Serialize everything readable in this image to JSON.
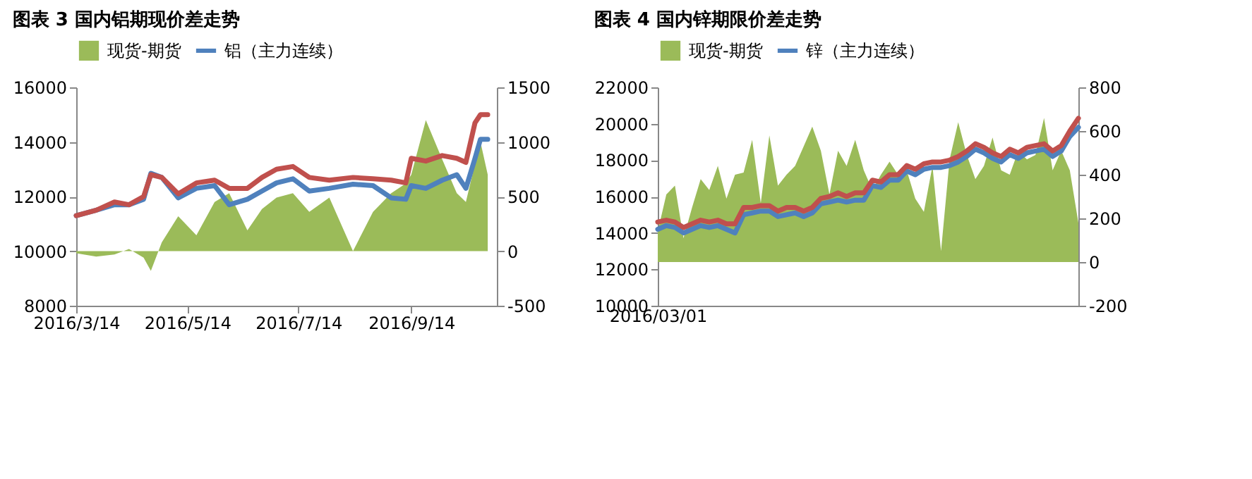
{
  "chart_data": [
    {
      "type": "line",
      "title": "图表 3 国内铝期现价差走势",
      "legend": "top",
      "x": [
        "2016-03-14",
        "2016-03-25",
        "2016-04-04",
        "2016-04-12",
        "2016-04-20",
        "2016-04-24",
        "2016-04-30",
        "2016-05-09",
        "2016-05-19",
        "2016-05-29",
        "2016-06-06",
        "2016-06-16",
        "2016-06-24",
        "2016-07-02",
        "2016-07-11",
        "2016-07-20",
        "2016-07-31",
        "2016-08-13",
        "2016-08-24",
        "2016-09-03",
        "2016-09-11",
        "2016-09-14",
        "2016-09-22",
        "2016-10-01",
        "2016-10-09",
        "2016-10-14",
        "2016-10-19",
        "2016-10-22",
        "2016-10-26"
      ],
      "xlim": [
        "2016-03-14",
        "2016-10-31"
      ],
      "xticks": [
        {
          "value": "2016-03-14",
          "label": "2016/3/14"
        },
        {
          "value": "2016-05-14",
          "label": "2016/5/14"
        },
        {
          "value": "2016-07-14",
          "label": "2016/7/14"
        },
        {
          "value": "2016-09-14",
          "label": "2016/9/14"
        }
      ],
      "ylim": [
        8000,
        16000
      ],
      "yticks": [
        8000,
        10000,
        12000,
        14000,
        16000
      ],
      "y2lim": [
        -500,
        1500
      ],
      "y2ticks": [
        -500,
        0,
        500,
        1000,
        1500
      ],
      "series": [
        {
          "name": "现货-期货",
          "type": "area",
          "axis": "y2",
          "color": "#9bbb59",
          "values": [
            -20,
            -50,
            -30,
            20,
            -60,
            -180,
            80,
            320,
            145,
            450,
            530,
            190,
            385,
            490,
            530,
            360,
            490,
            0,
            360,
            530,
            620,
            700,
            1200,
            840,
            530,
            450,
            800,
            1000,
            700
          ]
        },
        {
          "name": "铝（主力连续）",
          "color": "#4f81bd",
          "values": [
            11300,
            11500,
            11700,
            11700,
            11900,
            12850,
            12700,
            11950,
            12300,
            12400,
            11700,
            11900,
            12200,
            12500,
            12650,
            12200,
            12300,
            12450,
            12400,
            11950,
            11900,
            12400,
            12300,
            12600,
            12800,
            12300,
            13400,
            14100,
            14100
          ]
        },
        {
          "color": "#c0504d",
          "values": [
            11300,
            11500,
            11800,
            11700,
            12000,
            12800,
            12700,
            12100,
            12500,
            12600,
            12300,
            12300,
            12700,
            13000,
            13100,
            12700,
            12600,
            12700,
            12650,
            12600,
            12500,
            13400,
            13300,
            13500,
            13400,
            13250,
            14700,
            15000,
            15000
          ]
        }
      ]
    },
    {
      "type": "line",
      "title": "图表 4 国内锌期限价差走势",
      "legend": "top",
      "categories": [
        "2016/03/01",
        null,
        null,
        null,
        null,
        null,
        null,
        null,
        null,
        null,
        null,
        null,
        null,
        null,
        null,
        null,
        null,
        null,
        null,
        null,
        null,
        null,
        null,
        null,
        null,
        null,
        null,
        null,
        null,
        null,
        null,
        null,
        null,
        null,
        null,
        null,
        null,
        null,
        null,
        null,
        null,
        null,
        null,
        null,
        null,
        null,
        null,
        null,
        null,
        null
      ],
      "ylim": [
        10000,
        22000
      ],
      "yticks": [
        10000,
        12000,
        14000,
        16000,
        18000,
        20000,
        22000
      ],
      "y2lim": [
        -200,
        800
      ],
      "y2ticks": [
        -200,
        0,
        200,
        400,
        600,
        800
      ],
      "series": [
        {
          "name": "现货-期货",
          "type": "area",
          "axis": "y2",
          "color": "#9bbb59",
          "values": [
            140,
            310,
            350,
            110,
            250,
            380,
            330,
            440,
            290,
            400,
            410,
            560,
            270,
            580,
            350,
            400,
            440,
            530,
            620,
            510,
            310,
            510,
            440,
            560,
            420,
            330,
            400,
            460,
            400,
            420,
            290,
            230,
            440,
            50,
            470,
            640,
            490,
            380,
            440,
            570,
            420,
            400,
            510,
            470,
            490,
            660,
            420,
            510,
            420,
            180
          ]
        },
        {
          "name": "锌（主力连续）",
          "color": "#4f81bd",
          "values": [
            14200,
            14400,
            14300,
            14000,
            14200,
            14400,
            14300,
            14400,
            14200,
            14000,
            15000,
            15100,
            15200,
            15200,
            14900,
            15000,
            15100,
            14900,
            15100,
            15600,
            15700,
            15800,
            15700,
            15800,
            15800,
            16600,
            16500,
            16900,
            16900,
            17400,
            17200,
            17500,
            17600,
            17600,
            17700,
            17900,
            18200,
            18600,
            18400,
            18100,
            17900,
            18300,
            18100,
            18400,
            18500,
            18600,
            18200,
            18500,
            19300,
            19800
          ]
        },
        {
          "color": "#c0504d",
          "values": [
            14600,
            14700,
            14600,
            14300,
            14500,
            14700,
            14600,
            14700,
            14500,
            14500,
            15400,
            15400,
            15500,
            15500,
            15200,
            15400,
            15400,
            15200,
            15400,
            15900,
            16000,
            16200,
            16000,
            16200,
            16200,
            16900,
            16800,
            17200,
            17200,
            17700,
            17500,
            17800,
            17900,
            17900,
            18000,
            18200,
            18500,
            18900,
            18700,
            18400,
            18200,
            18600,
            18400,
            18700,
            18800,
            18900,
            18500,
            18800,
            19600,
            20300
          ]
        }
      ]
    }
  ]
}
